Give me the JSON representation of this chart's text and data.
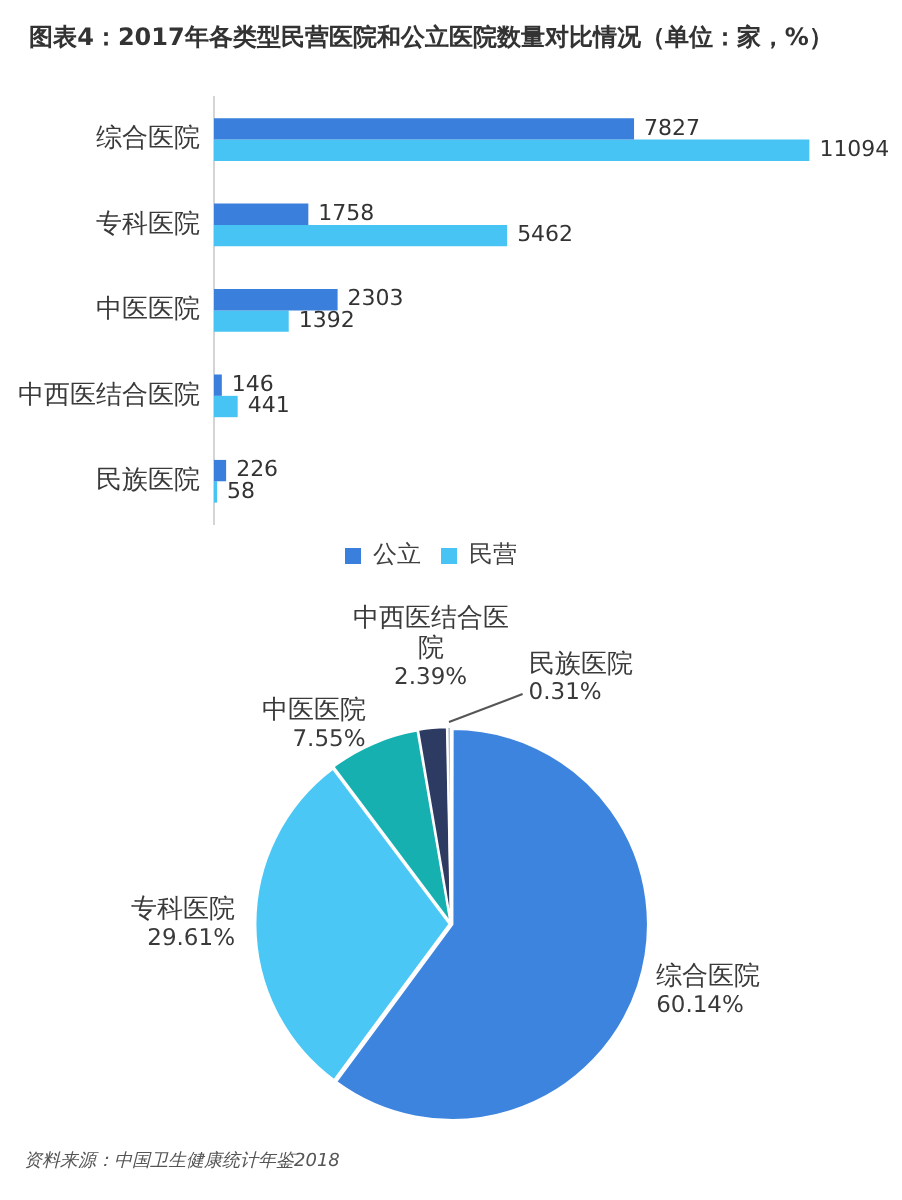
{
  "chart_data": [
    {
      "type": "bar",
      "title": "图表4：2017年各类型民营医院和公立医院数量对比情况（单位：家，%）",
      "orientation": "horizontal",
      "categories": [
        "综合医院",
        "专科医院",
        "中医医院",
        "中西医结合医院",
        "民族医院"
      ],
      "series": [
        {
          "name": "公立",
          "color": "#3a7fdb",
          "values": [
            7827,
            1758,
            2303,
            146,
            226
          ]
        },
        {
          "name": "民营",
          "color": "#47c4f3",
          "values": [
            11094,
            5462,
            1392,
            441,
            58
          ]
        }
      ],
      "data_labels": true,
      "legend": "bottom"
    },
    {
      "type": "pie",
      "categories": [
        "综合医院",
        "专科医院",
        "中医医院",
        "中西医结合医院",
        "民族医院"
      ],
      "values": [
        60.14,
        29.61,
        7.55,
        2.39,
        0.31
      ],
      "colors": [
        "#3d84de",
        "#4bc7f5",
        "#17b0b0",
        "#2d3b62",
        "#9eadc2"
      ],
      "value_labels": [
        "60.14%",
        "29.61%",
        "7.55%",
        "2.39%",
        "0.31%"
      ],
      "annotations": [
        "资料来源：中国卫生健康统计年鉴2018"
      ]
    }
  ]
}
